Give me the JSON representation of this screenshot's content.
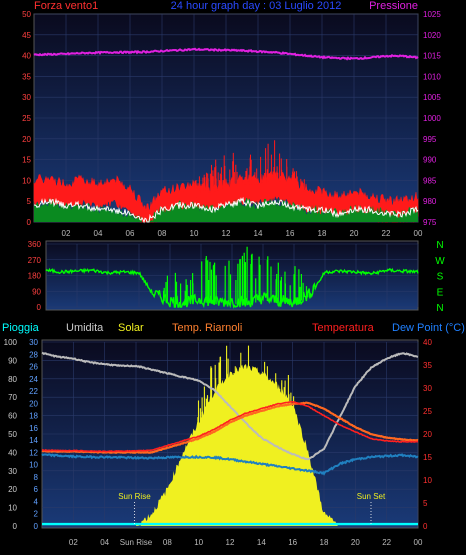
{
  "colors": {
    "wind_gust": "#ff1a1a",
    "wind_avg": "#ffffff",
    "wind_fill": "#0a8a20",
    "pressure": "#e020e0",
    "direction": "#00ff00",
    "direction_axis": "#00ff00",
    "rain": "#00ffff",
    "humidity": "#bbbbbb",
    "solar": "#f0f020",
    "temperature": "#ff2020",
    "heat_index": "#ff6820",
    "dew_point": "#2080c0",
    "left_axis": "#ff4040",
    "title": "#2a4aff",
    "bg_top": "#0a0a1e",
    "bg_bottom": "#1a3a78"
  },
  "chart_data": [
    {
      "type": "line",
      "id": "wind_pressure",
      "title": "24 hour graph day : 03 Luglio 2012",
      "left_label": "Forza vento1",
      "right_label": "Pressione",
      "x_tick_labels": [
        "02",
        "04",
        "06",
        "08",
        "10",
        "12",
        "14",
        "16",
        "18",
        "20",
        "22",
        "00"
      ],
      "y_left_ticks": [
        "50",
        "45",
        "40",
        "35",
        "30",
        "25",
        "20",
        "15",
        "10",
        "5",
        "0"
      ],
      "y_right_ticks": [
        "1025",
        "1020",
        "1015",
        "1010",
        "1005",
        "1000",
        "995",
        "990",
        "985",
        "980",
        "975"
      ],
      "ylim_left": [
        0,
        50
      ],
      "ylim_right": [
        975,
        1025
      ],
      "grid": true,
      "x": [
        0,
        1,
        2,
        3,
        4,
        5,
        6,
        7,
        8,
        9,
        10,
        11,
        12,
        13,
        14,
        15,
        16,
        17,
        18,
        19,
        20,
        21,
        22,
        23,
        24
      ],
      "series": [
        {
          "key": "pressure",
          "axis": "right",
          "values": [
            1015.2,
            1015.3,
            1015.4,
            1015.6,
            1015.7,
            1015.8,
            1015.8,
            1015.9,
            1016.1,
            1016.3,
            1016.5,
            1016.4,
            1016.3,
            1016.2,
            1016.0,
            1015.8,
            1015.4,
            1015.0,
            1014.6,
            1014.4,
            1014.3,
            1014.5,
            1014.9,
            1014.9,
            1014.5
          ]
        },
        {
          "key": "wind_gust",
          "axis": "left",
          "values": [
            9,
            9,
            8,
            9,
            8,
            9,
            7,
            2,
            6,
            7,
            8,
            7,
            8,
            9,
            9,
            10,
            9,
            7,
            6,
            5,
            6,
            5,
            4,
            4,
            5
          ]
        },
        {
          "key": "wind_gust_spike",
          "axis": "left",
          "values": [
            0,
            0,
            0,
            0,
            0,
            0,
            0,
            0,
            0,
            0,
            10,
            14,
            18,
            16,
            17,
            20,
            14,
            11,
            0,
            0,
            0,
            0,
            0,
            0,
            0
          ]
        },
        {
          "key": "wind_avg",
          "axis": "left",
          "values": [
            4,
            5,
            4,
            4,
            3,
            3,
            2,
            0,
            3,
            4,
            4,
            3,
            4,
            5,
            4,
            5,
            4,
            3,
            3,
            2,
            3,
            3,
            2,
            2,
            3
          ]
        }
      ]
    },
    {
      "type": "line",
      "id": "wind_direction",
      "y_left_ticks": [
        "360",
        "270",
        "180",
        "90",
        "0"
      ],
      "direction_labels": [
        "N",
        "W",
        "S",
        "E",
        "N"
      ],
      "ylim": [
        0,
        360
      ],
      "x": [
        0,
        1,
        2,
        3,
        4,
        5,
        6,
        7,
        8,
        9,
        10,
        11,
        12,
        13,
        14,
        15,
        16,
        17,
        18,
        19,
        20,
        21,
        22,
        23,
        24
      ],
      "series": [
        {
          "key": "direction",
          "values": [
            210,
            200,
            205,
            210,
            195,
            200,
            195,
            60,
            20,
            10,
            30,
            15,
            20,
            10,
            40,
            20,
            15,
            60,
            200,
            205,
            200,
            190,
            210,
            205,
            200
          ]
        },
        {
          "key": "direction_spike",
          "values": [
            0,
            0,
            0,
            0,
            0,
            0,
            0,
            0,
            230,
            150,
            250,
            300,
            260,
            320,
            300,
            280,
            220,
            150,
            0,
            0,
            0,
            0,
            0,
            0,
            0
          ]
        }
      ]
    },
    {
      "type": "line",
      "id": "temperature_humidity_solar",
      "labels": {
        "rain": "Pioggia",
        "humidity": "Umidita",
        "solar": "Solar",
        "heat_index": "Temp. Riarnoli",
        "temperature": "Temperatura",
        "dew_point": "Dew Point (°C)"
      },
      "x_tick_labels": [
        "02",
        "04",
        "Sun Rise",
        "08",
        "10",
        "12",
        "14",
        "16",
        "18",
        "20",
        "22",
        "00"
      ],
      "y_left1_ticks": [
        "100",
        "90",
        "80",
        "70",
        "60",
        "50",
        "40",
        "30",
        "20",
        "10",
        "0"
      ],
      "y_left2_ticks": [
        "30",
        "28",
        "26",
        "24",
        "22",
        "20",
        "18",
        "16",
        "14",
        "12",
        "10",
        "8",
        "6",
        "4",
        "2",
        "0"
      ],
      "y_right_ticks": [
        "40",
        "35",
        "30",
        "25",
        "20",
        "15",
        "10",
        "5",
        "0"
      ],
      "ylim_humidity": [
        0,
        100
      ],
      "ylim_temperature": [
        0,
        40
      ],
      "annotations": [
        {
          "text": "Sun Rise",
          "x": 5.9
        },
        {
          "text": "Sun Set",
          "x": 21.0
        }
      ],
      "x": [
        0,
        1,
        2,
        3,
        4,
        5,
        6,
        7,
        8,
        9,
        10,
        11,
        12,
        13,
        14,
        15,
        16,
        17,
        18,
        19,
        20,
        21,
        22,
        23,
        24
      ],
      "series": [
        {
          "key": "humidity",
          "values": [
            94,
            92,
            91,
            89,
            88,
            87,
            87,
            85,
            83,
            81,
            79,
            74,
            65,
            56,
            48,
            43,
            39,
            36,
            42,
            59,
            76,
            86,
            91,
            94,
            92
          ]
        },
        {
          "key": "temperature",
          "values": [
            16.5,
            16.4,
            16.4,
            16.3,
            16.2,
            16.3,
            16.3,
            16.5,
            17.5,
            18.5,
            19.5,
            21,
            23,
            24.5,
            25.5,
            26.5,
            27,
            26,
            24,
            22,
            20.5,
            19,
            18.5,
            18.3,
            18.3
          ]
        },
        {
          "key": "heat_index",
          "values": [
            16.3,
            16.2,
            16.2,
            16.1,
            16.0,
            16.0,
            16.0,
            16.0,
            17.0,
            18.0,
            19.0,
            20.5,
            22.5,
            24.0,
            25.0,
            26.0,
            26.5,
            26.8,
            25.5,
            23.5,
            21.5,
            20.0,
            19.2,
            18.8,
            18.6
          ]
        },
        {
          "key": "dew_point",
          "values": [
            15.5,
            15.3,
            15.1,
            15.0,
            15.0,
            14.9,
            14.8,
            14.8,
            14.9,
            15.0,
            15.0,
            14.9,
            14.5,
            14.0,
            13.5,
            13.0,
            12.5,
            12.0,
            11.5,
            13.5,
            14.5,
            15.0,
            15.2,
            15.4,
            15.0
          ]
        },
        {
          "key": "solar",
          "values": [
            0,
            0,
            0,
            0,
            0,
            0,
            0,
            2,
            6,
            12,
            17,
            22,
            25,
            26,
            25,
            23,
            20,
            12,
            2,
            0,
            0,
            0,
            0,
            0,
            0
          ]
        },
        {
          "key": "solar_spike",
          "values": [
            0,
            0,
            0,
            0,
            0,
            0,
            0,
            0,
            0,
            0,
            22,
            28,
            30,
            30,
            29,
            27,
            24,
            0,
            0,
            0,
            0,
            0,
            0,
            0,
            0
          ]
        },
        {
          "key": "rain",
          "values": [
            0.3,
            0.3,
            0.3,
            0.3,
            0.3,
            0.3,
            0.3,
            0.3,
            0.3,
            0.3,
            0.3,
            0.3,
            0.3,
            0.3,
            0.3,
            0.3,
            0.3,
            0.3,
            0.3,
            0.3,
            0.3,
            0.3,
            0.3,
            0.3,
            0.3
          ]
        }
      ]
    }
  ]
}
